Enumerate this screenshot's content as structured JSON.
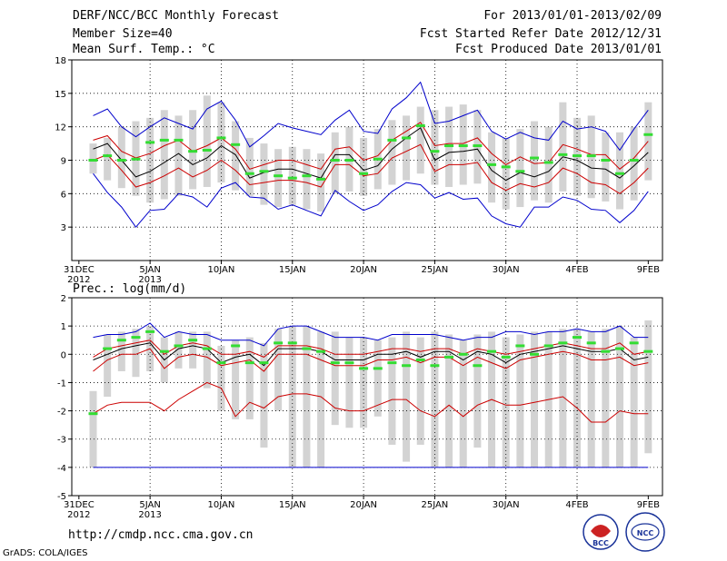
{
  "header": {
    "title": "DERF/NCC/BCC Monthly Forecast",
    "member_size": "Member Size=40",
    "variable": "Mean Surf. Temp.: °C",
    "period": "For 2013/01/01-2013/02/09",
    "fcst_started": "Fcst Started Refer Date 2012/12/31",
    "fcst_produced": "Fcst Produced Date 2013/01/01"
  },
  "footer": {
    "url": "http://cmdp.ncc.cma.gov.cn",
    "grads": "GrADS: COLA/IGES"
  },
  "logos": {
    "bcc": "BCC",
    "ncc": "NCC"
  },
  "colors": {
    "spread": "#d3d3d3",
    "max_min": "#0000cc",
    "pct": "#cc0000",
    "mean": "#000000",
    "obs": "#33dd33"
  },
  "chart_data": [
    {
      "type": "line",
      "panel": "temperature",
      "title": "Mean Surf. Temp.: °C",
      "ylim": [
        0,
        18
      ],
      "yticks": [
        3,
        6,
        9,
        12,
        15,
        18
      ],
      "xticks": [
        {
          "day": 0,
          "label": "31DEC",
          "sub": "2012"
        },
        {
          "day": 5,
          "label": "5JAN",
          "sub": "2013"
        },
        {
          "day": 10,
          "label": "10JAN",
          "sub": ""
        },
        {
          "day": 15,
          "label": "15JAN",
          "sub": ""
        },
        {
          "day": 20,
          "label": "20JAN",
          "sub": ""
        },
        {
          "day": 25,
          "label": "25JAN",
          "sub": ""
        },
        {
          "day": 30,
          "label": "30JAN",
          "sub": ""
        },
        {
          "day": 35,
          "label": "4FEB",
          "sub": ""
        },
        {
          "day": 40,
          "label": "9FEB",
          "sub": ""
        }
      ],
      "days": [
        1,
        2,
        3,
        4,
        5,
        6,
        7,
        8,
        9,
        10,
        11,
        12,
        13,
        14,
        15,
        16,
        17,
        18,
        19,
        20,
        21,
        22,
        23,
        24,
        25,
        26,
        27,
        28,
        29,
        30,
        31,
        32,
        33,
        34,
        35,
        36,
        37,
        38,
        39,
        40
      ],
      "spread_low": [
        7.8,
        7.2,
        6.5,
        5.8,
        5.2,
        5.5,
        5.8,
        6.4,
        6.6,
        7.0,
        6.3,
        5.8,
        5.0,
        4.8,
        5.0,
        4.6,
        4.4,
        6.0,
        6.2,
        5.8,
        6.4,
        6.8,
        7.2,
        7.8,
        6.8,
        6.6,
        6.8,
        6.9,
        5.2,
        4.6,
        4.8,
        5.4,
        5.2,
        6.2,
        5.8,
        5.6,
        5.3,
        4.6,
        5.4,
        7.2
      ],
      "spread_high": [
        10.5,
        11.0,
        12.0,
        12.5,
        12.8,
        13.5,
        13.0,
        13.5,
        14.8,
        14.2,
        12.5,
        11.0,
        10.5,
        10.0,
        10.2,
        10.0,
        9.6,
        11.5,
        12.0,
        11.0,
        11.8,
        12.6,
        13.0,
        13.8,
        13.5,
        13.8,
        14.0,
        13.5,
        11.5,
        11.0,
        11.8,
        12.5,
        12.0,
        14.2,
        12.8,
        13.0,
        11.5,
        11.5,
        12.0,
        14.2
      ],
      "series": [
        {
          "name": "Max",
          "color": "#0000cc",
          "values": [
            13.0,
            13.6,
            12.0,
            11.1,
            12.0,
            12.8,
            12.3,
            11.8,
            13.6,
            14.3,
            12.6,
            10.2,
            11.2,
            12.3,
            11.9,
            11.6,
            11.3,
            12.6,
            13.5,
            11.6,
            11.4,
            13.6,
            14.6,
            16.0,
            12.3,
            12.5,
            13.0,
            13.5,
            11.6,
            10.9,
            11.5,
            11.0,
            10.8,
            12.5,
            11.8,
            12.0,
            11.6,
            9.9,
            11.8,
            13.5
          ]
        },
        {
          "name": "Pct High",
          "color": "#cc0000",
          "values": [
            10.8,
            11.2,
            9.8,
            9.2,
            9.6,
            10.3,
            10.8,
            9.8,
            10.3,
            11.0,
            10.0,
            8.2,
            8.6,
            9.0,
            9.0,
            8.6,
            8.2,
            10.0,
            10.2,
            9.0,
            9.4,
            10.8,
            11.6,
            12.4,
            10.3,
            10.5,
            10.5,
            11.0,
            9.6,
            8.6,
            9.3,
            8.7,
            8.8,
            10.4,
            10.0,
            9.5,
            9.5,
            8.2,
            9.2,
            10.7
          ]
        },
        {
          "name": "Mean",
          "color": "#000000",
          "values": [
            10.0,
            10.5,
            9.0,
            7.5,
            8.0,
            8.8,
            9.6,
            8.6,
            9.2,
            10.3,
            9.5,
            7.4,
            7.9,
            8.2,
            8.2,
            7.8,
            7.4,
            9.5,
            9.5,
            8.1,
            8.5,
            10.0,
            11.0,
            11.9,
            9.0,
            9.7,
            9.8,
            10.0,
            8.1,
            7.2,
            7.9,
            7.5,
            8.0,
            9.3,
            9.0,
            8.3,
            8.2,
            7.4,
            8.5,
            9.7
          ]
        },
        {
          "name": "Pct Low",
          "color": "#cc0000",
          "values": [
            9.0,
            9.5,
            8.1,
            6.6,
            7.0,
            7.6,
            8.3,
            7.5,
            8.1,
            9.0,
            8.1,
            6.8,
            7.0,
            7.2,
            7.2,
            7.0,
            6.6,
            8.6,
            8.6,
            7.6,
            7.8,
            9.2,
            9.8,
            10.4,
            8.0,
            8.6,
            8.6,
            8.8,
            7.0,
            6.3,
            6.9,
            6.6,
            7.0,
            8.3,
            7.8,
            7.0,
            6.8,
            6.0,
            7.0,
            8.3
          ]
        },
        {
          "name": "Min",
          "color": "#0000cc",
          "values": [
            7.8,
            6.1,
            4.8,
            3.0,
            4.5,
            4.6,
            6.0,
            5.7,
            4.8,
            6.5,
            7.0,
            5.7,
            5.6,
            4.6,
            5.0,
            4.5,
            4.0,
            6.3,
            5.3,
            4.5,
            5.0,
            6.2,
            7.0,
            6.8,
            5.6,
            6.1,
            5.5,
            5.6,
            4.0,
            3.3,
            3.0,
            4.8,
            4.8,
            5.7,
            5.4,
            4.6,
            4.5,
            3.4,
            4.5,
            6.2
          ]
        }
      ],
      "observed": [
        9.0,
        9.4,
        9.0,
        9.1,
        10.6,
        10.8,
        10.8,
        9.8,
        9.9,
        11.0,
        10.4,
        7.8,
        8.0,
        7.6,
        7.4,
        7.6,
        7.3,
        9.0,
        9.0,
        7.8,
        9.1,
        10.8,
        11.0,
        12.1,
        9.8,
        10.3,
        10.3,
        10.3,
        8.6,
        8.4,
        8.0,
        9.2,
        8.8,
        9.5,
        9.4,
        9.4,
        9.0,
        7.8,
        9.0,
        11.3
      ]
    },
    {
      "type": "line",
      "panel": "precipitation",
      "title": "Prec.: log(mm/d)",
      "ylim": [
        -5,
        2
      ],
      "yticks": [
        -5,
        -4,
        -3,
        -2,
        -1,
        0,
        1,
        2
      ],
      "xticks": [
        {
          "day": 0,
          "label": "31DEC",
          "sub": "2012"
        },
        {
          "day": 5,
          "label": "5JAN",
          "sub": "2013"
        },
        {
          "day": 10,
          "label": "10JAN",
          "sub": ""
        },
        {
          "day": 15,
          "label": "15JAN",
          "sub": ""
        },
        {
          "day": 20,
          "label": "20JAN",
          "sub": ""
        },
        {
          "day": 25,
          "label": "25JAN",
          "sub": ""
        },
        {
          "day": 30,
          "label": "30JAN",
          "sub": ""
        },
        {
          "day": 35,
          "label": "4FEB",
          "sub": ""
        },
        {
          "day": 40,
          "label": "9FEB",
          "sub": ""
        }
      ],
      "days": [
        1,
        2,
        3,
        4,
        5,
        6,
        7,
        8,
        9,
        10,
        11,
        12,
        13,
        14,
        15,
        16,
        17,
        18,
        19,
        20,
        21,
        22,
        23,
        24,
        25,
        26,
        27,
        28,
        29,
        30,
        31,
        32,
        33,
        34,
        35,
        36,
        37,
        38,
        39,
        40
      ],
      "spread_low": [
        -4.0,
        -1.5,
        -0.6,
        -0.8,
        -0.6,
        -1.0,
        -0.5,
        -0.5,
        -1.2,
        -2.0,
        -2.3,
        -2.3,
        -3.3,
        -2.0,
        -4.0,
        -4.0,
        -4.0,
        -2.5,
        -2.6,
        -2.6,
        -2.2,
        -3.2,
        -3.8,
        -3.2,
        -4.0,
        -4.0,
        -4.0,
        -3.3,
        -4.0,
        -4.0,
        -4.0,
        -4.0,
        -4.0,
        -4.0,
        -4.0,
        -4.0,
        -4.0,
        -4.0,
        -4.0,
        -3.5
      ],
      "spread_high": [
        -1.3,
        0.7,
        0.8,
        0.9,
        1.0,
        0.6,
        0.8,
        0.8,
        0.8,
        0.3,
        0.5,
        0.6,
        0.4,
        0.9,
        1.0,
        1.0,
        0.8,
        0.8,
        0.6,
        0.6,
        0.5,
        0.6,
        0.8,
        0.6,
        0.8,
        0.7,
        0.5,
        0.7,
        0.8,
        0.6,
        0.7,
        0.8,
        0.8,
        0.9,
        0.9,
        0.8,
        0.9,
        1.0,
        0.6,
        1.2
      ],
      "series": [
        {
          "name": "Max",
          "color": "#0000cc",
          "values": [
            0.6,
            0.7,
            0.7,
            0.8,
            1.1,
            0.6,
            0.8,
            0.7,
            0.7,
            0.5,
            0.5,
            0.5,
            0.3,
            0.9,
            1.0,
            1.0,
            0.8,
            0.6,
            0.6,
            0.6,
            0.5,
            0.7,
            0.7,
            0.7,
            0.7,
            0.6,
            0.5,
            0.6,
            0.6,
            0.8,
            0.8,
            0.7,
            0.8,
            0.8,
            0.9,
            0.8,
            0.8,
            1.0,
            0.6,
            0.6
          ]
        },
        {
          "name": "Pct High",
          "color": "#cc0000",
          "values": [
            -0.1,
            0.2,
            0.3,
            0.4,
            0.5,
            0.0,
            0.3,
            0.4,
            0.3,
            0.0,
            0.0,
            0.1,
            -0.1,
            0.3,
            0.3,
            0.3,
            0.2,
            0.0,
            0.0,
            0.0,
            0.1,
            0.2,
            0.2,
            0.1,
            0.2,
            0.2,
            0.0,
            0.2,
            0.1,
            0.0,
            0.1,
            0.2,
            0.3,
            0.4,
            0.3,
            0.2,
            0.2,
            0.4,
            0.0,
            0.1
          ]
        },
        {
          "name": "Mean",
          "color": "#000000",
          "values": [
            -0.2,
            0.0,
            0.2,
            0.3,
            0.4,
            -0.2,
            0.2,
            0.3,
            0.2,
            -0.3,
            -0.1,
            0.0,
            -0.4,
            0.2,
            0.2,
            0.2,
            0.1,
            -0.2,
            -0.2,
            -0.2,
            0.0,
            0.0,
            0.1,
            -0.1,
            0.1,
            0.1,
            -0.2,
            0.1,
            0.0,
            -0.3,
            0.0,
            0.1,
            0.2,
            0.3,
            0.2,
            0.1,
            0.1,
            0.2,
            -0.2,
            -0.1
          ]
        },
        {
          "name": "Pct Low",
          "color": "#cc0000",
          "values": [
            -0.6,
            -0.2,
            0.0,
            0.0,
            0.2,
            -0.5,
            -0.1,
            0.0,
            -0.1,
            -0.4,
            -0.3,
            -0.2,
            -0.6,
            0.0,
            0.0,
            0.0,
            -0.2,
            -0.4,
            -0.4,
            -0.4,
            -0.2,
            -0.2,
            -0.1,
            -0.3,
            -0.1,
            -0.1,
            -0.4,
            -0.1,
            -0.3,
            -0.5,
            -0.2,
            -0.1,
            0.0,
            0.1,
            0.0,
            -0.2,
            -0.2,
            -0.1,
            -0.4,
            -0.3
          ]
        },
        {
          "name": "Pct Low 2",
          "color": "#cc0000",
          "values": [
            -2.1,
            -1.8,
            -1.7,
            -1.7,
            -1.7,
            -2.0,
            -1.6,
            -1.3,
            -1.0,
            -1.2,
            -2.2,
            -1.7,
            -1.9,
            -1.5,
            -1.4,
            -1.4,
            -1.5,
            -1.9,
            -2.0,
            -2.0,
            -1.8,
            -1.6,
            -1.6,
            -2.0,
            -2.2,
            -1.8,
            -2.2,
            -1.8,
            -1.6,
            -1.8,
            -1.8,
            -1.7,
            -1.6,
            -1.5,
            -1.9,
            -2.4,
            -2.4,
            -2.0,
            -2.1,
            -2.1
          ]
        },
        {
          "name": "Min",
          "color": "#0000cc",
          "values": [
            -4.0,
            -4.0,
            -4.0,
            -4.0,
            -4.0,
            -4.0,
            -4.0,
            -4.0,
            -4.0,
            -4.0,
            -4.0,
            -4.0,
            -4.0,
            -4.0,
            -4.0,
            -4.0,
            -4.0,
            -4.0,
            -4.0,
            -4.0,
            -4.0,
            -4.0,
            -4.0,
            -4.0,
            -4.0,
            -4.0,
            -4.0,
            -4.0,
            -4.0,
            -4.0,
            -4.0,
            -4.0,
            -4.0,
            -4.0,
            -4.0,
            -4.0,
            -4.0,
            -4.0,
            -4.0,
            -4.0
          ]
        }
      ],
      "observed": [
        -2.1,
        0.2,
        0.5,
        0.6,
        0.8,
        0.1,
        0.3,
        0.5,
        0.2,
        -0.3,
        0.3,
        -0.3,
        -0.3,
        0.4,
        0.4,
        0.2,
        0.1,
        -0.3,
        -0.3,
        -0.5,
        -0.5,
        -0.3,
        -0.4,
        -0.2,
        -0.4,
        -0.1,
        0.0,
        -0.4,
        0.1,
        -0.1,
        0.3,
        0.0,
        0.3,
        0.4,
        0.6,
        0.4,
        0.1,
        0.2,
        0.4,
        0.1
      ]
    }
  ]
}
